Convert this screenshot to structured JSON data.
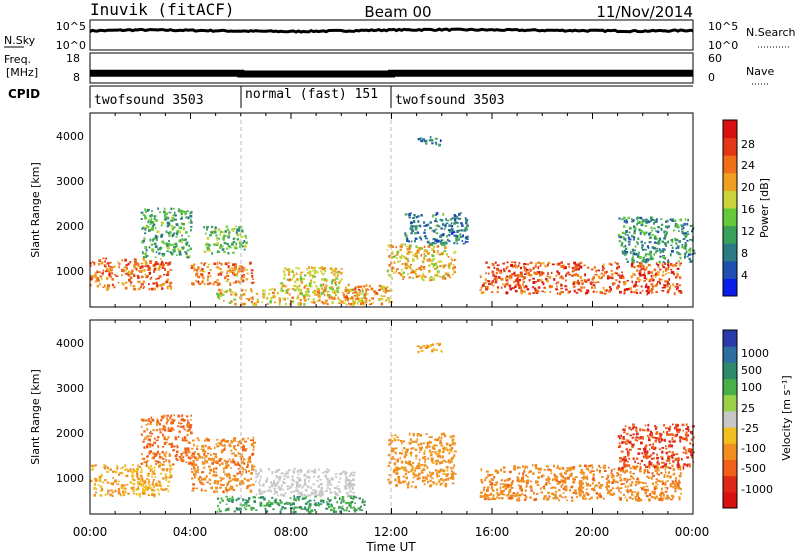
{
  "header": {
    "station": "Inuvik (fitACF)",
    "beam": "Beam 00",
    "date": "11/Nov/2014"
  },
  "noise_panel": {
    "left_label": "N.Sky",
    "right_label": "N.Search",
    "y_ticks_left": [
      "10^5",
      "10^0"
    ],
    "y_ticks_right": [
      "10^5",
      "10^0"
    ]
  },
  "freq_panel": {
    "left_label_line1": "Freq.",
    "left_label_line2": "[MHz]",
    "right_label": "Nave",
    "y_ticks_left": [
      "18",
      "8"
    ],
    "y_ticks_right": [
      "60",
      "0"
    ]
  },
  "cpid_panel": {
    "label": "CPID",
    "segments": [
      {
        "label": "twofsound 3503",
        "start_hour": 0,
        "end_hour": 6
      },
      {
        "label": "normal (fast) 151",
        "start_hour": 6,
        "end_hour": 12
      },
      {
        "label": "twofsound 3503",
        "start_hour": 12,
        "end_hour": 24
      }
    ]
  },
  "x_axis": {
    "label": "Time UT",
    "ticks": [
      "00:00",
      "04:00",
      "08:00",
      "12:00",
      "16:00",
      "20:00",
      "00:00"
    ],
    "range_hours": [
      0,
      24
    ]
  },
  "power_panel": {
    "ylabel": "Slant Range [km]",
    "yticks": [
      "1000",
      "2000",
      "3000",
      "4000"
    ],
    "colorbar_label": "Power [dB]",
    "colorbar_ticks": [
      "4",
      "8",
      "12",
      "16",
      "20",
      "24",
      "28"
    ]
  },
  "velocity_panel": {
    "ylabel": "Slant Range [km]",
    "yticks": [
      "1000",
      "2000",
      "3000",
      "4000"
    ],
    "colorbar_label": "Velocity [m s⁻¹]",
    "colorbar_ticks": [
      "1000",
      "500",
      "100",
      "25",
      "-25",
      "-100",
      "-500",
      "-1000"
    ]
  },
  "chart_data": [
    {
      "type": "line",
      "title": "",
      "ylabel": "N.Sky",
      "y_scale": "log",
      "ylim": [
        1,
        100000
      ],
      "x": [
        0,
        2,
        4,
        6,
        8,
        10,
        12,
        14,
        16,
        18,
        20,
        22,
        24
      ],
      "series": [
        {
          "values": [
            2000,
            3000,
            2500,
            1800,
            1500,
            2000,
            3000,
            3500,
            3000,
            2500,
            2200,
            1800,
            2500
          ]
        }
      ]
    },
    {
      "type": "line",
      "title": "",
      "ylabel": "Freq. [MHz]",
      "ylim": [
        8,
        18
      ],
      "x": [
        0,
        6,
        6,
        12,
        12,
        24
      ],
      "series": [
        {
          "values": [
            11,
            11,
            10.7,
            10.7,
            11,
            11
          ]
        }
      ]
    },
    {
      "type": "heatmap",
      "title": "",
      "xlabel": "Time UT",
      "ylabel": "Slant Range [km]",
      "colorbar": "Power [dB]",
      "xlim": [
        0,
        24
      ],
      "ylim": [
        180,
        4500
      ],
      "clim": [
        0,
        32
      ],
      "colors": [
        "#0a1de8",
        "#1f4fb0",
        "#2c7a86",
        "#3aa05a",
        "#66c93a",
        "#c8d43a",
        "#f0a020",
        "#f07018",
        "#e23818",
        "#d81010"
      ],
      "regions": [
        {
          "t0": 0.0,
          "t1": 3.2,
          "r0": 600,
          "r1": 1300,
          "level": 24
        },
        {
          "t0": 2.0,
          "t1": 4.0,
          "r0": 1300,
          "r1": 2400,
          "level": 12
        },
        {
          "t0": 4.0,
          "t1": 6.5,
          "r0": 700,
          "r1": 1200,
          "level": 24
        },
        {
          "t0": 4.5,
          "t1": 6.2,
          "r0": 1400,
          "r1": 2000,
          "level": 14
        },
        {
          "t0": 5.0,
          "t1": 11.0,
          "r0": 250,
          "r1": 600,
          "level": 20
        },
        {
          "t0": 7.5,
          "t1": 10.0,
          "r0": 500,
          "r1": 1100,
          "level": 18
        },
        {
          "t0": 10.0,
          "t1": 12.0,
          "r0": 250,
          "r1": 700,
          "level": 22
        },
        {
          "t0": 11.8,
          "t1": 14.5,
          "r0": 800,
          "r1": 1600,
          "level": 20
        },
        {
          "t0": 12.5,
          "t1": 15.0,
          "r0": 1600,
          "r1": 2300,
          "level": 8
        },
        {
          "t0": 15.5,
          "t1": 23.5,
          "r0": 500,
          "r1": 1200,
          "level": 26
        },
        {
          "t0": 21.0,
          "t1": 24.0,
          "r0": 1200,
          "r1": 2200,
          "level": 10
        },
        {
          "t0": 13.0,
          "t1": 14.0,
          "r0": 3800,
          "r1": 4000,
          "level": 8
        }
      ]
    },
    {
      "type": "heatmap",
      "title": "",
      "xlabel": "Time UT",
      "ylabel": "Slant Range [km]",
      "colorbar": "Velocity [m s⁻¹]",
      "xlim": [
        0,
        24
      ],
      "ylim": [
        180,
        4500
      ],
      "colors": [
        "#2a3aa8",
        "#2f6fa0",
        "#2f8a6a",
        "#48b048",
        "#9bd04a",
        "#c8c8c8",
        "#f0c020",
        "#f08f20",
        "#f06018",
        "#e02818",
        "#d81010"
      ],
      "regions": [
        {
          "t0": 0.0,
          "t1": 3.2,
          "r0": 600,
          "r1": 1300,
          "level": -100
        },
        {
          "t0": 2.0,
          "t1": 4.0,
          "r0": 1300,
          "r1": 2400,
          "level": -300
        },
        {
          "t0": 4.0,
          "t1": 6.5,
          "r0": 700,
          "r1": 1900,
          "level": -200
        },
        {
          "t0": 5.0,
          "t1": 11.0,
          "r0": 250,
          "r1": 600,
          "level": 100
        },
        {
          "t0": 6.5,
          "t1": 10.5,
          "r0": 600,
          "r1": 1200,
          "level": 0
        },
        {
          "t0": 11.8,
          "t1": 14.5,
          "r0": 800,
          "r1": 2000,
          "level": -150
        },
        {
          "t0": 15.5,
          "t1": 23.5,
          "r0": 500,
          "r1": 1300,
          "level": -200
        },
        {
          "t0": 21.0,
          "t1": 24.0,
          "r0": 1200,
          "r1": 2200,
          "level": -500
        },
        {
          "t0": 13.0,
          "t1": 14.0,
          "r0": 3800,
          "r1": 4000,
          "level": -100
        }
      ]
    }
  ]
}
